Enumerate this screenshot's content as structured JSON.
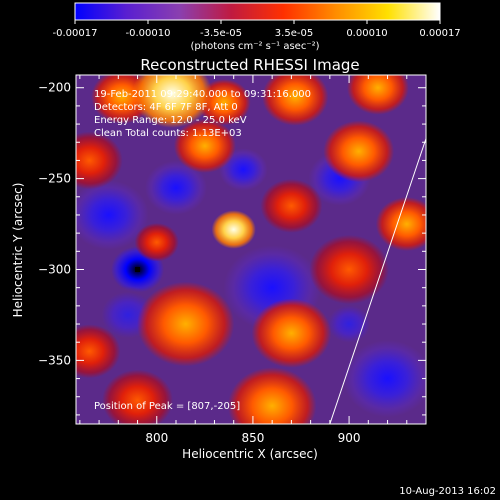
{
  "colorbar": {
    "ticks": [
      "-0.00017",
      "-0.00010",
      "-3.5e-05",
      "3.5e-05",
      "0.00010",
      "0.00017"
    ],
    "unit_label": "(photons cm⁻² s⁻¹ asec⁻²)",
    "colors": [
      "#0000ff",
      "#5a1fd0",
      "#8a3fb0",
      "#c01a40",
      "#ff3000",
      "#ff8c00",
      "#ffe000",
      "#ffffff"
    ]
  },
  "annotations": {
    "time": "19-Feb-2011 09:29:40.000 to 09:31:16.000",
    "detectors": "Detectors: 4F 6F 7F 8F, Att 0",
    "energy": "Energy Range: 12.0 - 25.0 keV",
    "clean": "Clean    Total counts: 1.13E+03",
    "peak": "Position of Peak = [807,-205]"
  },
  "footer": {
    "timestamp": "10-Aug-2013 16:02"
  },
  "chart_data": {
    "type": "heatmap",
    "title": "Reconstructed RHESSI Image",
    "xlabel": "Heliocentric X (arcsec)",
    "ylabel": "Heliocentric Y (arcsec)",
    "xlim": [
      758,
      940
    ],
    "ylim": [
      -385,
      -193
    ],
    "x_ticks": [
      800,
      850,
      900
    ],
    "y_ticks": [
      -200,
      -250,
      -300,
      -350
    ],
    "intensity_range": [
      -0.00017,
      0.00017
    ],
    "peak": {
      "x": 807,
      "y": -205
    },
    "min_marker": {
      "x": 790,
      "y": -300
    },
    "limb_line": [
      [
        890,
        -385
      ],
      [
        940,
        -228
      ]
    ],
    "blobs": [
      {
        "x": 808,
        "y": -203,
        "r": 18,
        "v": 1.0
      },
      {
        "x": 782,
        "y": -205,
        "r": 14,
        "v": 0.75
      },
      {
        "x": 835,
        "y": -208,
        "r": 12,
        "v": 0.7
      },
      {
        "x": 872,
        "y": -205,
        "r": 15,
        "v": 0.72
      },
      {
        "x": 915,
        "y": -200,
        "r": 14,
        "v": 0.7
      },
      {
        "x": 765,
        "y": -240,
        "r": 15,
        "v": 0.6
      },
      {
        "x": 825,
        "y": -232,
        "r": 14,
        "v": 0.78
      },
      {
        "x": 905,
        "y": -235,
        "r": 16,
        "v": 0.82
      },
      {
        "x": 840,
        "y": -278,
        "r": 10,
        "v": 0.9
      },
      {
        "x": 870,
        "y": -265,
        "r": 14,
        "v": 0.55
      },
      {
        "x": 900,
        "y": -300,
        "r": 18,
        "v": 0.6
      },
      {
        "x": 930,
        "y": -275,
        "r": 14,
        "v": 0.75
      },
      {
        "x": 800,
        "y": -285,
        "r": 10,
        "v": 0.55
      },
      {
        "x": 815,
        "y": -330,
        "r": 22,
        "v": 0.72
      },
      {
        "x": 765,
        "y": -345,
        "r": 14,
        "v": 0.62
      },
      {
        "x": 870,
        "y": -335,
        "r": 18,
        "v": 0.7
      },
      {
        "x": 860,
        "y": -375,
        "r": 20,
        "v": 0.8
      },
      {
        "x": 790,
        "y": -372,
        "r": 16,
        "v": 0.6
      },
      {
        "x": 790,
        "y": -300,
        "r": 12,
        "v": -1.0
      },
      {
        "x": 775,
        "y": -270,
        "r": 18,
        "v": -0.65
      },
      {
        "x": 810,
        "y": -255,
        "r": 14,
        "v": -0.75
      },
      {
        "x": 860,
        "y": -310,
        "r": 22,
        "v": -0.8
      },
      {
        "x": 895,
        "y": -250,
        "r": 14,
        "v": -0.7
      },
      {
        "x": 845,
        "y": -245,
        "r": 11,
        "v": -0.6
      },
      {
        "x": 920,
        "y": -360,
        "r": 20,
        "v": -0.65
      },
      {
        "x": 785,
        "y": -325,
        "r": 15,
        "v": -0.55
      },
      {
        "x": 900,
        "y": -330,
        "r": 12,
        "v": -0.5
      }
    ]
  }
}
